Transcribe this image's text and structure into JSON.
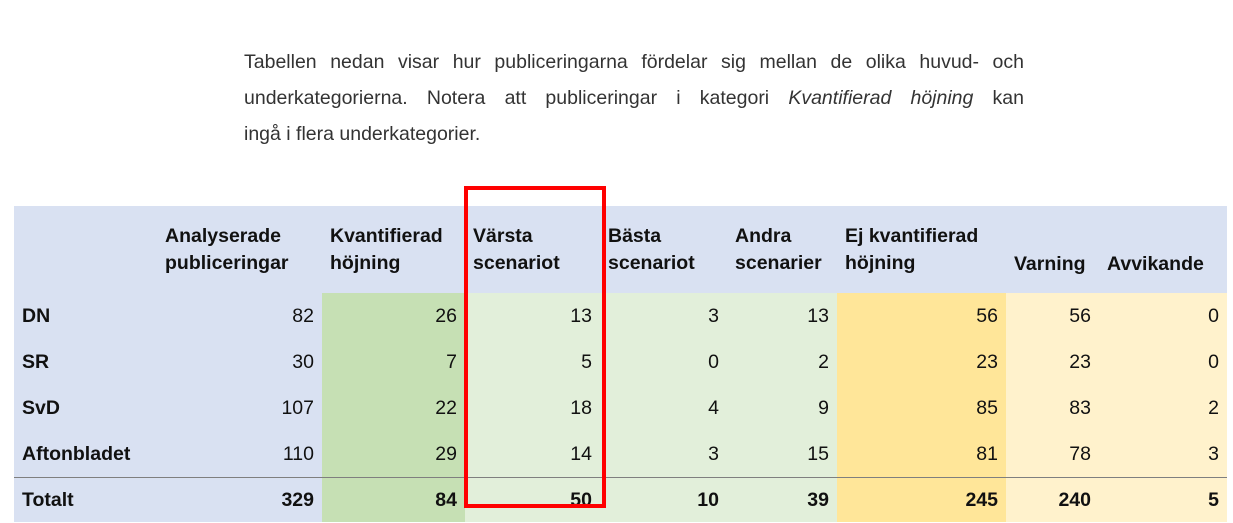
{
  "intro": {
    "line1": "Tabellen nedan visar hur publiceringarna fördelar sig mellan de olika huvud- och",
    "line2_a": "underkategorierna. Notera att publiceringar i kategori ",
    "line2_em": "Kvantifierad höjning",
    "line2_b": " kan",
    "line3": "ingå i flera underkategorier."
  },
  "table": {
    "headers": [
      {
        "line1": "",
        "line2": ""
      },
      {
        "line1": "Analyserade",
        "line2": "publiceringar"
      },
      {
        "line1": "Kvantifierad",
        "line2": "höjning"
      },
      {
        "line1": "Värsta",
        "line2": "scenariot"
      },
      {
        "line1": "Bästa",
        "line2": "scenariot"
      },
      {
        "line1": "Andra",
        "line2": "scenarier"
      },
      {
        "line1": "Ej kvantifierad",
        "line2": "höjning"
      },
      {
        "line1": "",
        "line2": "Varning"
      },
      {
        "line1": "",
        "line2": "Avvikande"
      }
    ],
    "rows": [
      [
        "DN",
        "82",
        "26",
        "13",
        "3",
        "13",
        "56",
        "56",
        "0"
      ],
      [
        "SR",
        "30",
        "7",
        "5",
        "0",
        "2",
        "23",
        "23",
        "0"
      ],
      [
        "SvD",
        "107",
        "22",
        "18",
        "4",
        "9",
        "85",
        "83",
        "2"
      ],
      [
        "Aftonbladet",
        "110",
        "29",
        "14",
        "3",
        "15",
        "81",
        "78",
        "3"
      ]
    ],
    "total": [
      "Totalt",
      "329",
      "84",
      "50",
      "10",
      "39",
      "245",
      "240",
      "5"
    ]
  },
  "colors": {
    "blue": "#d9e1f2",
    "green": "#c6e0b4",
    "light_green": "#e2efda",
    "orange": "#ffe699",
    "light_orange": "#fff2cc",
    "highlight": "#ff0000"
  }
}
